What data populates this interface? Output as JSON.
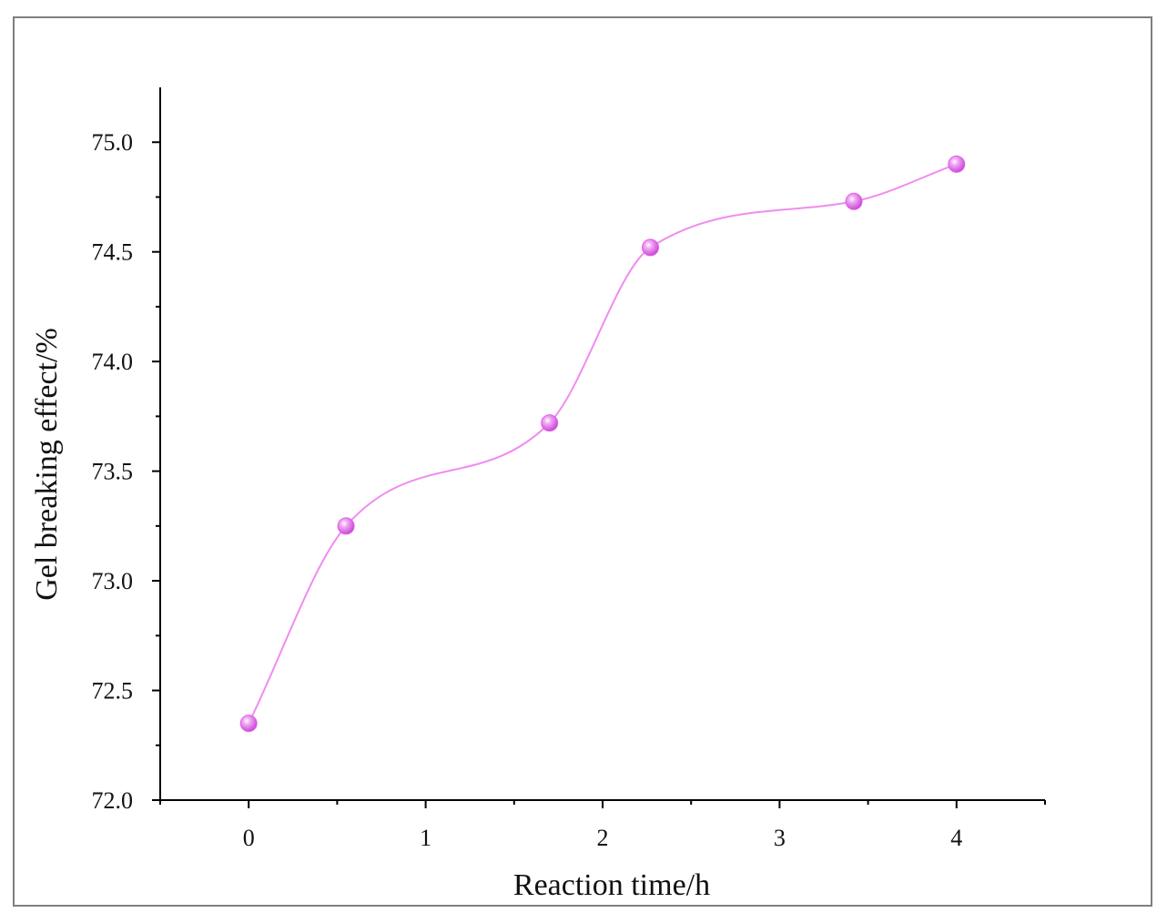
{
  "chart_data": {
    "type": "line",
    "xlabel": "Reaction time/h",
    "ylabel": "Gel breaking effect/%",
    "xlim": [
      -0.5,
      4.5
    ],
    "ylim": [
      72.0,
      75.25
    ],
    "xticks": [
      0,
      1,
      2,
      3,
      4
    ],
    "xtick_labels": [
      "0",
      "1",
      "2",
      "3",
      "4"
    ],
    "yticks": [
      72.0,
      72.5,
      73.0,
      73.5,
      74.0,
      74.5,
      75.0
    ],
    "ytick_labels": [
      "72.0",
      "72.5",
      "73.0",
      "73.5",
      "74.0",
      "74.5",
      "75.0"
    ],
    "grid": false,
    "smooth": true,
    "series": [
      {
        "x": [
          0,
          0.55,
          1.7,
          2.27,
          3.42,
          4.0
        ],
        "y": [
          72.35,
          73.25,
          73.72,
          74.52,
          74.73,
          74.9
        ],
        "line_color": "#f08cf0",
        "marker_color": "#e060e8"
      }
    ]
  }
}
